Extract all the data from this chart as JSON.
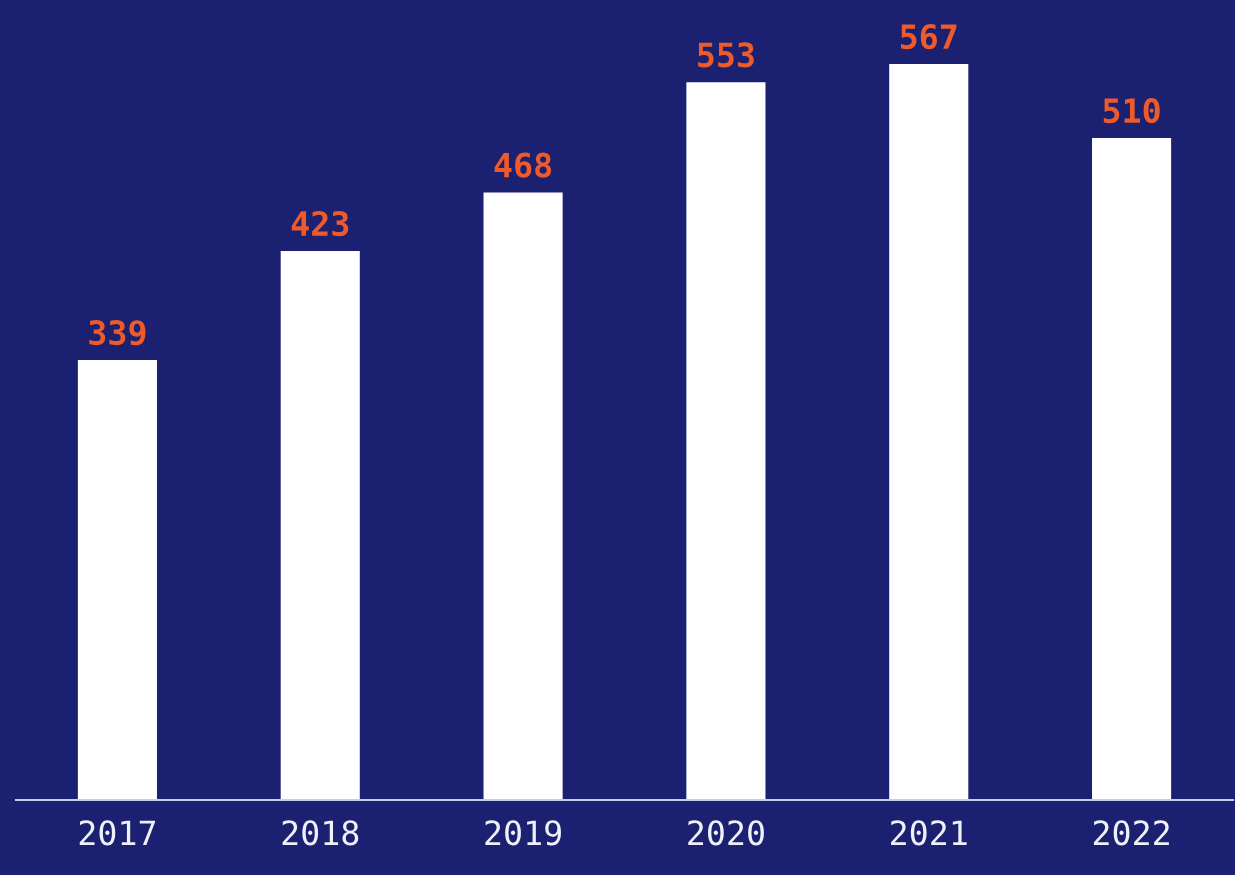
{
  "chart_data": {
    "type": "bar",
    "categories": [
      "2017",
      "2018",
      "2019",
      "2020",
      "2021",
      "2022"
    ],
    "values": [
      339,
      423,
      468,
      553,
      567,
      510
    ],
    "color": "#ffffff",
    "data_labels": true,
    "grid": false,
    "legend": false,
    "tick_labels": "x"
  }
}
